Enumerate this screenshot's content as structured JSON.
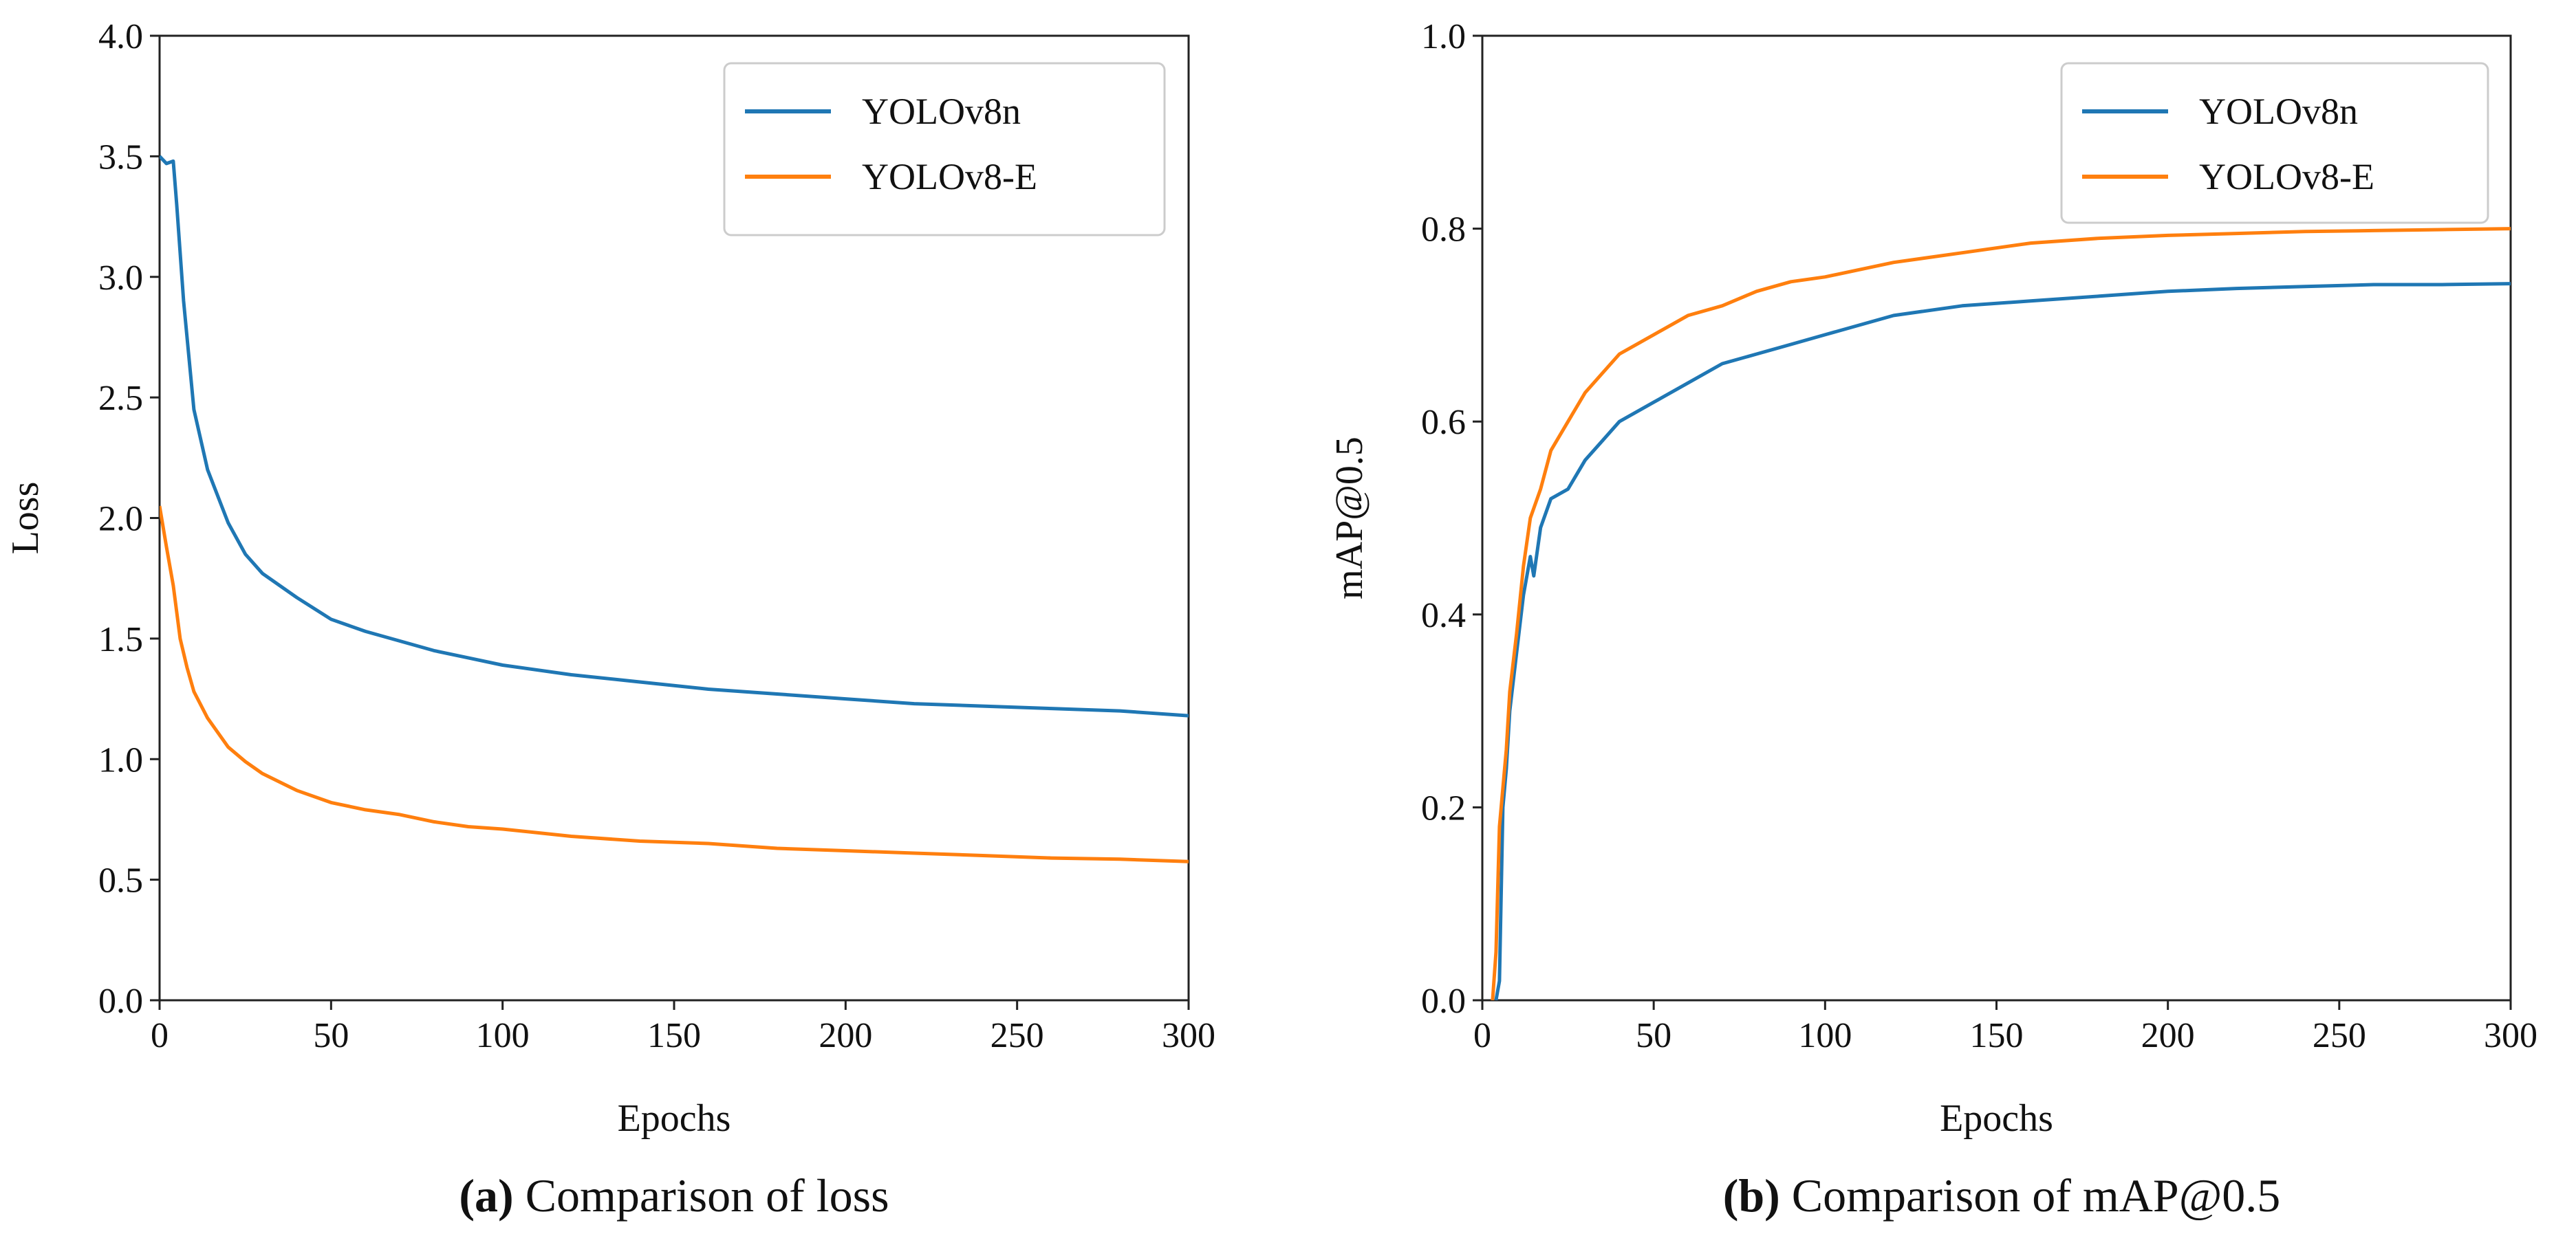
{
  "chart_data": [
    {
      "type": "line",
      "caption_prefix": "(a)",
      "caption_text": " Comparison of loss",
      "xlabel": "Epochs",
      "ylabel": "Loss",
      "xlim": [
        0,
        300
      ],
      "ylim": [
        0,
        4.0
      ],
      "xticks": [
        0,
        50,
        100,
        150,
        200,
        250,
        300
      ],
      "yticks": [
        "0.0",
        "0.5",
        "1.0",
        "1.5",
        "2.0",
        "2.5",
        "3.0",
        "3.5",
        "4.0"
      ],
      "legend_position": "top-right",
      "series": [
        {
          "name": "YOLOv8n",
          "color": "#1f77b4",
          "points": [
            [
              0,
              3.5
            ],
            [
              2,
              3.47
            ],
            [
              4,
              3.48
            ],
            [
              5,
              3.3
            ],
            [
              7,
              2.9
            ],
            [
              10,
              2.45
            ],
            [
              14,
              2.2
            ],
            [
              20,
              1.98
            ],
            [
              25,
              1.85
            ],
            [
              30,
              1.77
            ],
            [
              40,
              1.67
            ],
            [
              50,
              1.58
            ],
            [
              60,
              1.53
            ],
            [
              70,
              1.49
            ],
            [
              80,
              1.45
            ],
            [
              90,
              1.42
            ],
            [
              100,
              1.39
            ],
            [
              120,
              1.35
            ],
            [
              140,
              1.32
            ],
            [
              160,
              1.29
            ],
            [
              180,
              1.27
            ],
            [
              200,
              1.25
            ],
            [
              220,
              1.23
            ],
            [
              240,
              1.22
            ],
            [
              260,
              1.21
            ],
            [
              280,
              1.2
            ],
            [
              300,
              1.18
            ]
          ]
        },
        {
          "name": "YOLOv8-E",
          "color": "#ff7f0e",
          "points": [
            [
              0,
              2.05
            ],
            [
              2,
              1.88
            ],
            [
              4,
              1.72
            ],
            [
              6,
              1.5
            ],
            [
              8,
              1.38
            ],
            [
              10,
              1.28
            ],
            [
              14,
              1.17
            ],
            [
              20,
              1.05
            ],
            [
              25,
              0.99
            ],
            [
              30,
              0.94
            ],
            [
              40,
              0.87
            ],
            [
              50,
              0.82
            ],
            [
              60,
              0.79
            ],
            [
              70,
              0.77
            ],
            [
              80,
              0.74
            ],
            [
              90,
              0.72
            ],
            [
              100,
              0.71
            ],
            [
              120,
              0.68
            ],
            [
              140,
              0.66
            ],
            [
              160,
              0.65
            ],
            [
              180,
              0.63
            ],
            [
              200,
              0.62
            ],
            [
              220,
              0.61
            ],
            [
              240,
              0.6
            ],
            [
              260,
              0.59
            ],
            [
              280,
              0.585
            ],
            [
              300,
              0.575
            ]
          ]
        }
      ]
    },
    {
      "type": "line",
      "caption_prefix": "(b)",
      "caption_text": " Comparison of mAP@0.5",
      "xlabel": "Epochs",
      "ylabel": "mAP@0.5",
      "xlim": [
        0,
        300
      ],
      "ylim": [
        0,
        1.0
      ],
      "xticks": [
        0,
        50,
        100,
        150,
        200,
        250,
        300
      ],
      "yticks": [
        "0.0",
        "0.2",
        "0.4",
        "0.6",
        "0.8",
        "1.0"
      ],
      "legend_position": "top-right",
      "series": [
        {
          "name": "YOLOv8n",
          "color": "#1f77b4",
          "points": [
            [
              4,
              0
            ],
            [
              5,
              0.02
            ],
            [
              6,
              0.2
            ],
            [
              7,
              0.24
            ],
            [
              8,
              0.3
            ],
            [
              10,
              0.36
            ],
            [
              12,
              0.42
            ],
            [
              14,
              0.46
            ],
            [
              15,
              0.44
            ],
            [
              17,
              0.49
            ],
            [
              20,
              0.52
            ],
            [
              25,
              0.53
            ],
            [
              30,
              0.56
            ],
            [
              35,
              0.58
            ],
            [
              40,
              0.6
            ],
            [
              50,
              0.62
            ],
            [
              60,
              0.64
            ],
            [
              70,
              0.66
            ],
            [
              80,
              0.67
            ],
            [
              90,
              0.68
            ],
            [
              100,
              0.69
            ],
            [
              120,
              0.71
            ],
            [
              140,
              0.72
            ],
            [
              160,
              0.725
            ],
            [
              180,
              0.73
            ],
            [
              200,
              0.735
            ],
            [
              220,
              0.738
            ],
            [
              240,
              0.74
            ],
            [
              260,
              0.742
            ],
            [
              280,
              0.742
            ],
            [
              300,
              0.743
            ]
          ]
        },
        {
          "name": "YOLOv8-E",
          "color": "#ff7f0e",
          "points": [
            [
              3,
              0
            ],
            [
              4,
              0.05
            ],
            [
              5,
              0.18
            ],
            [
              7,
              0.26
            ],
            [
              8,
              0.32
            ],
            [
              10,
              0.38
            ],
            [
              12,
              0.45
            ],
            [
              14,
              0.5
            ],
            [
              17,
              0.53
            ],
            [
              20,
              0.57
            ],
            [
              25,
              0.6
            ],
            [
              30,
              0.63
            ],
            [
              35,
              0.65
            ],
            [
              40,
              0.67
            ],
            [
              50,
              0.69
            ],
            [
              60,
              0.71
            ],
            [
              70,
              0.72
            ],
            [
              80,
              0.735
            ],
            [
              90,
              0.745
            ],
            [
              100,
              0.75
            ],
            [
              120,
              0.765
            ],
            [
              140,
              0.775
            ],
            [
              160,
              0.785
            ],
            [
              180,
              0.79
            ],
            [
              200,
              0.793
            ],
            [
              220,
              0.795
            ],
            [
              240,
              0.797
            ],
            [
              260,
              0.798
            ],
            [
              280,
              0.799
            ],
            [
              300,
              0.8
            ]
          ]
        }
      ]
    }
  ]
}
